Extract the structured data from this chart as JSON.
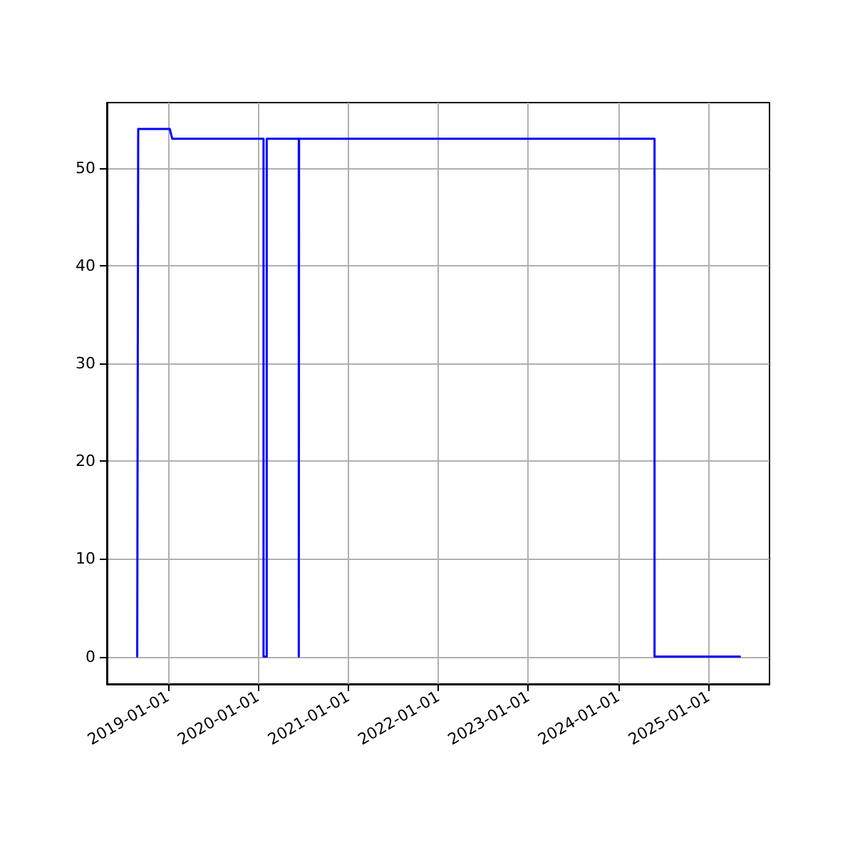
{
  "chart_data": {
    "type": "line",
    "x": [
      "2018-08-30",
      "2018-09-03",
      "2019-01-09",
      "2019-01-19",
      "2020-01-24",
      "2020-01-24",
      "2020-02-06",
      "2020-02-06",
      "2020-06-15",
      "2020-06-15",
      "2020-06-16",
      "2024-05-27",
      "2024-05-27",
      "2025-05-08"
    ],
    "series": [
      {
        "color": "#0000ff",
        "values": [
          0,
          54,
          54,
          53,
          53,
          0,
          0,
          53,
          53,
          0,
          53,
          53,
          0,
          0
        ]
      }
    ],
    "xlim": [
      "2018-04-29",
      "2025-09-05"
    ],
    "xticks": [
      "2019-01-01",
      "2020-01-01",
      "2021-01-01",
      "2022-01-01",
      "2023-01-01",
      "2024-01-01",
      "2025-01-01"
    ],
    "ylim": [
      -2.8,
      56.7
    ],
    "yticks": [
      0,
      10,
      20,
      30,
      40,
      50
    ],
    "grid": true,
    "marker": "none",
    "line_style": "solid"
  }
}
